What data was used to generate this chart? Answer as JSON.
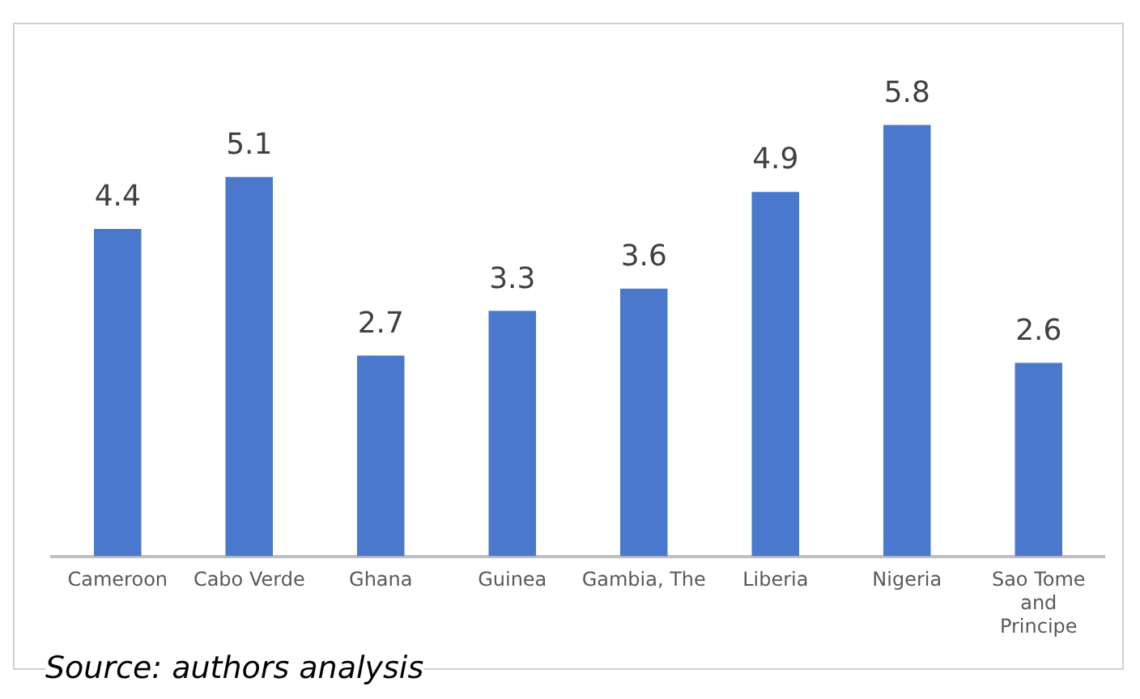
{
  "chart_data": {
    "type": "bar",
    "categories": [
      "Cameroon",
      "Cabo Verde",
      "Ghana",
      "Guinea",
      "Gambia, The",
      "Liberia",
      "Nigeria",
      "Sao Tome and Principe"
    ],
    "values": [
      4.4,
      5.1,
      2.7,
      3.3,
      3.6,
      4.9,
      5.8,
      2.6
    ],
    "color": "#4a78cc",
    "data_labels": true,
    "grid": false,
    "legend": false,
    "annotations": [
      "Source: authors analysis"
    ]
  }
}
